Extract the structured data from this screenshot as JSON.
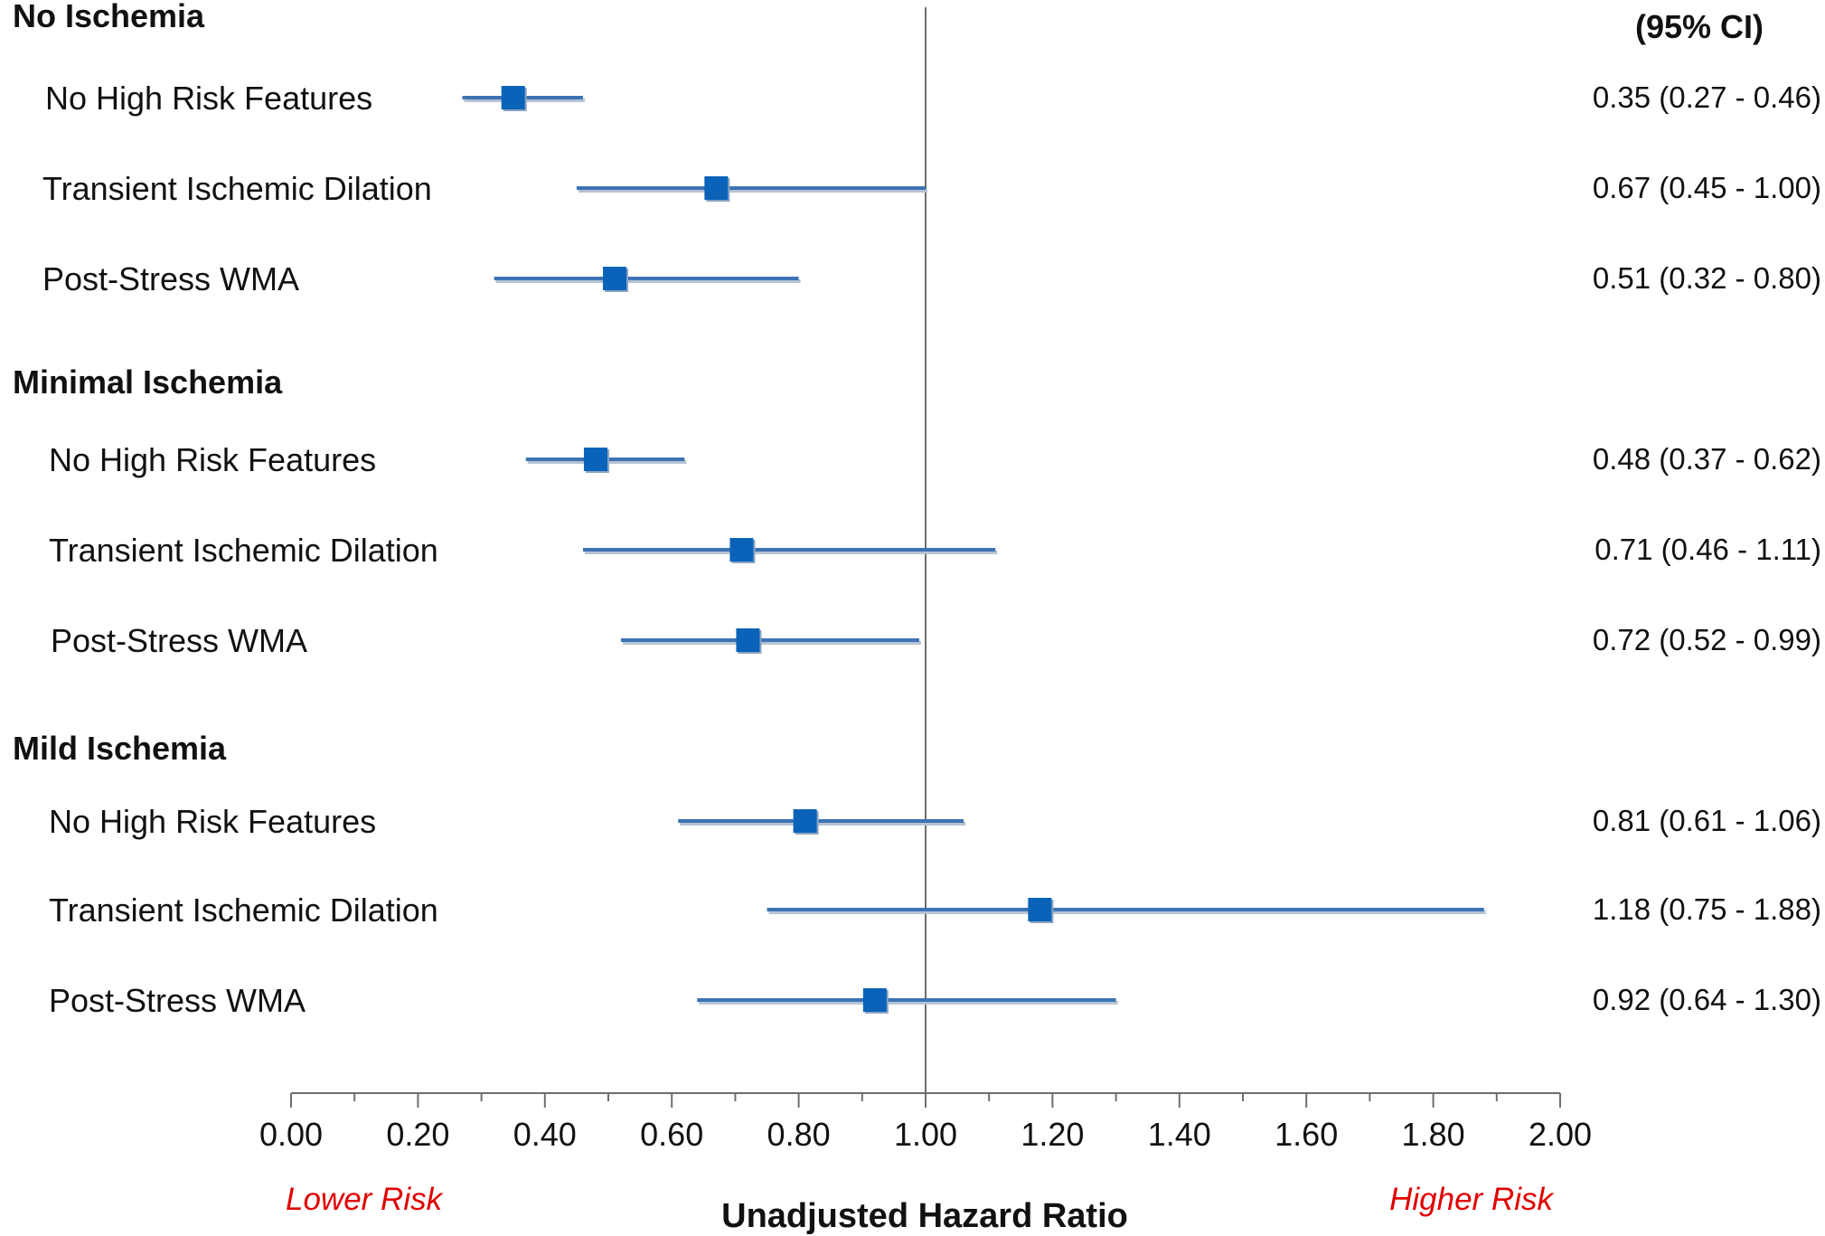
{
  "chart_data": {
    "type": "forest",
    "ci_header": "(95% CI)",
    "xlabel": "Unadjusted Hazard Ratio",
    "xlim": [
      0,
      2
    ],
    "xticks": [
      "0.00",
      "0.20",
      "0.40",
      "0.60",
      "0.80",
      "1.00",
      "1.20",
      "1.40",
      "1.60",
      "1.80",
      "2.00"
    ],
    "reference_line": 1.0,
    "lower_label": "Lower Risk",
    "higher_label": "Higher Risk",
    "colors": {
      "marker": "#0a63b8",
      "ci_line": "#3d73b3",
      "risk_text": "#e00000"
    },
    "groups": [
      {
        "title": "No Ischemia",
        "rows": [
          {
            "label": "No High Risk Features",
            "hr": 0.35,
            "lo": 0.27,
            "hi": 0.46,
            "text": "0.35 (0.27 - 0.46)"
          },
          {
            "label": "Transient Ischemic Dilation",
            "hr": 0.67,
            "lo": 0.45,
            "hi": 1.0,
            "text": "0.67 (0.45 - 1.00)"
          },
          {
            "label": "Post-Stress WMA",
            "hr": 0.51,
            "lo": 0.32,
            "hi": 0.8,
            "text": "0.51 (0.32 - 0.80)"
          }
        ]
      },
      {
        "title": "Minimal Ischemia",
        "rows": [
          {
            "label": "No High Risk Features",
            "hr": 0.48,
            "lo": 0.37,
            "hi": 0.62,
            "text": "0.48 (0.37 - 0.62)"
          },
          {
            "label": "Transient Ischemic Dilation",
            "hr": 0.71,
            "lo": 0.46,
            "hi": 1.11,
            "text": "0.71 (0.46 - 1.11)"
          },
          {
            "label": "Post-Stress WMA",
            "hr": 0.72,
            "lo": 0.52,
            "hi": 0.99,
            "text": "0.72 (0.52 - 0.99)"
          }
        ]
      },
      {
        "title": "Mild Ischemia",
        "rows": [
          {
            "label": "No High Risk Features",
            "hr": 0.81,
            "lo": 0.61,
            "hi": 1.06,
            "text": "0.81 (0.61 - 1.06)"
          },
          {
            "label": "Transient Ischemic Dilation",
            "hr": 1.18,
            "lo": 0.75,
            "hi": 1.88,
            "text": "1.18 (0.75 - 1.88)"
          },
          {
            "label": "Post-Stress WMA",
            "hr": 0.92,
            "lo": 0.64,
            "hi": 1.3,
            "text": "0.92 (0.64 - 1.30)"
          }
        ]
      }
    ]
  }
}
